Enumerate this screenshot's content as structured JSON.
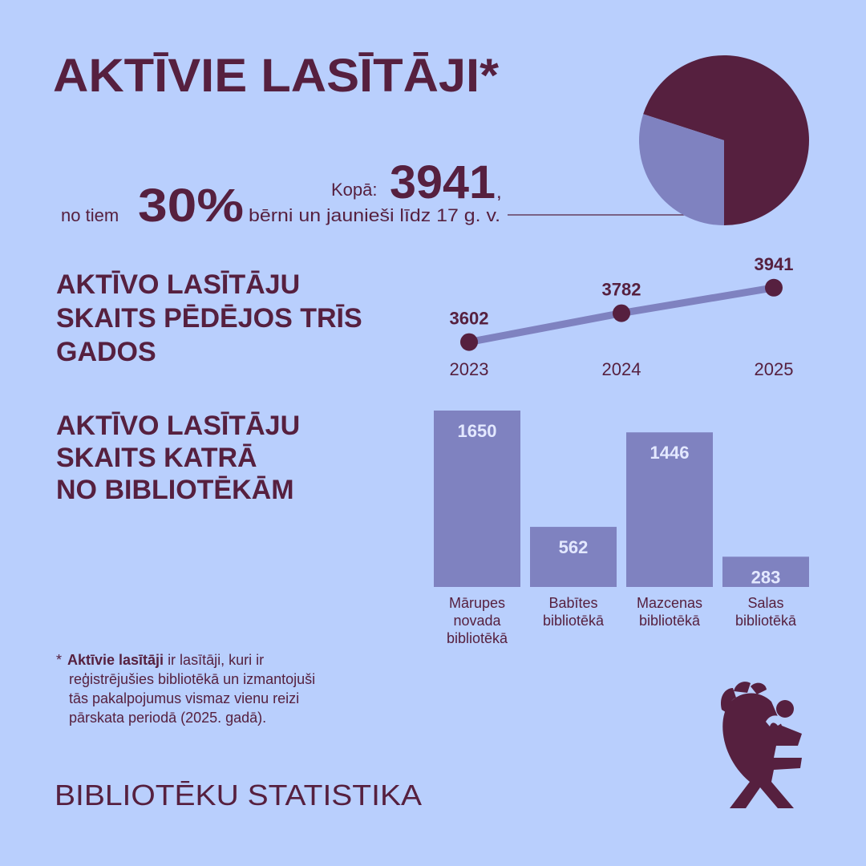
{
  "title": "AKTĪVIE LASĪTĀJI*",
  "summary": {
    "total_prefix": "Kopā:",
    "total": 3941,
    "total_suffix": ",",
    "share_prefix": "no tiem",
    "share_suffix": "bērni un jaunieši līdz 17 g. v."
  },
  "chart_data": [
    {
      "type": "pie",
      "values": [
        70,
        30
      ],
      "value_labels": [
        null,
        "30%"
      ],
      "colors": [
        "#56203f",
        "#7f82c0"
      ]
    },
    {
      "type": "line",
      "title": "AKTĪVO LASĪTĀJU\nSKAITS PĒDĒJOS TRĪS\nGADOS",
      "x": [
        "2023",
        "2024",
        "2025"
      ],
      "values": [
        3602,
        3782,
        3941
      ],
      "color": "#7f82c0",
      "marker_color": "#56203f",
      "ylim": [
        3500,
        4000
      ]
    },
    {
      "type": "bar",
      "title": "AKTĪVO LASĪTĀJU\nSKAITS KATRĀ\nNO BIBLIOTĒKĀM",
      "categories": [
        "Mārupes\nnovada\nbibliotēkā",
        "Babītes\nbibliotēkā",
        "Mazcenas\nbibliotēkā",
        "Salas\nbibliotēkā"
      ],
      "values": [
        1650,
        562,
        1446,
        283
      ],
      "color": "#7f82c0",
      "label_color": "#e3e8ff",
      "ylim": [
        0,
        1650
      ]
    }
  ],
  "footnote": {
    "marker": "*",
    "term": "Aktīvie lasītāji",
    "text": "ir lasītāji, kuri ir\nreģistrējušies bibliotēkā un izmantojuši\ntās pakalpojumus vismaz vienu reizi\npārskata periodā (2025. gadā)."
  },
  "footer": "BIBLIOTĒKU STATISTIKA"
}
